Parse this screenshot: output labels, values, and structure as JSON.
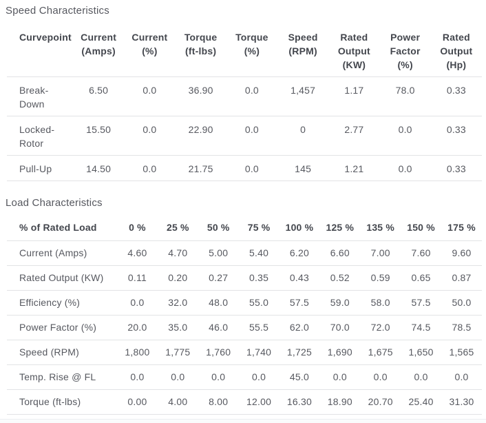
{
  "colors": {
    "heading_text": "#43464d",
    "body_text": "#56585f",
    "divider": "#e2e3e5",
    "page_background": "#ffffff",
    "footer_strip": "#fafbfc"
  },
  "speed_section": {
    "title": "Speed Characteristics",
    "columns": [
      "Curvepoint",
      "Current (Amps)",
      "Current (%)",
      "Torque (ft-lbs)",
      "Torque (%)",
      "Speed (RPM)",
      "Rated Output (KW)",
      "Power Factor (%)",
      "Rated Output (Hp)"
    ],
    "rows": [
      {
        "label": "Break-Down",
        "values": [
          "6.50",
          "0.0",
          "36.90",
          "0.0",
          "1,457",
          "1.17",
          "78.0",
          "0.33"
        ]
      },
      {
        "label": "Locked-Rotor",
        "values": [
          "15.50",
          "0.0",
          "22.90",
          "0.0",
          "0",
          "2.77",
          "0.0",
          "0.33"
        ]
      },
      {
        "label": "Pull-Up",
        "values": [
          "14.50",
          "0.0",
          "21.75",
          "0.0",
          "145",
          "1.21",
          "0.0",
          "0.33"
        ]
      }
    ]
  },
  "load_section": {
    "title": "Load Characteristics",
    "columns": [
      "% of Rated Load",
      "0 %",
      "25 %",
      "50 %",
      "75 %",
      "100 %",
      "125 %",
      "135 %",
      "150 %",
      "175 %"
    ],
    "rows": [
      {
        "label": "Current (Amps)",
        "values": [
          "4.60",
          "4.70",
          "5.00",
          "5.40",
          "6.20",
          "6.60",
          "7.00",
          "7.60",
          "9.60"
        ]
      },
      {
        "label": "Rated Output (KW)",
        "values": [
          "0.11",
          "0.20",
          "0.27",
          "0.35",
          "0.43",
          "0.52",
          "0.59",
          "0.65",
          "0.87"
        ]
      },
      {
        "label": "Efficiency (%)",
        "values": [
          "0.0",
          "32.0",
          "48.0",
          "55.0",
          "57.5",
          "59.0",
          "58.0",
          "57.5",
          "50.0"
        ]
      },
      {
        "label": "Power Factor (%)",
        "values": [
          "20.0",
          "35.0",
          "46.0",
          "55.5",
          "62.0",
          "70.0",
          "72.0",
          "74.5",
          "78.5"
        ]
      },
      {
        "label": "Speed (RPM)",
        "values": [
          "1,800",
          "1,775",
          "1,760",
          "1,740",
          "1,725",
          "1,690",
          "1,675",
          "1,650",
          "1,565"
        ]
      },
      {
        "label": "Temp. Rise @ FL",
        "values": [
          "0.0",
          "0.0",
          "0.0",
          "0.0",
          "45.0",
          "0.0",
          "0.0",
          "0.0",
          "0.0"
        ]
      },
      {
        "label": "Torque (ft-lbs)",
        "values": [
          "0.00",
          "4.00",
          "8.00",
          "12.00",
          "16.30",
          "18.90",
          "20.70",
          "25.40",
          "31.30"
        ]
      }
    ]
  }
}
